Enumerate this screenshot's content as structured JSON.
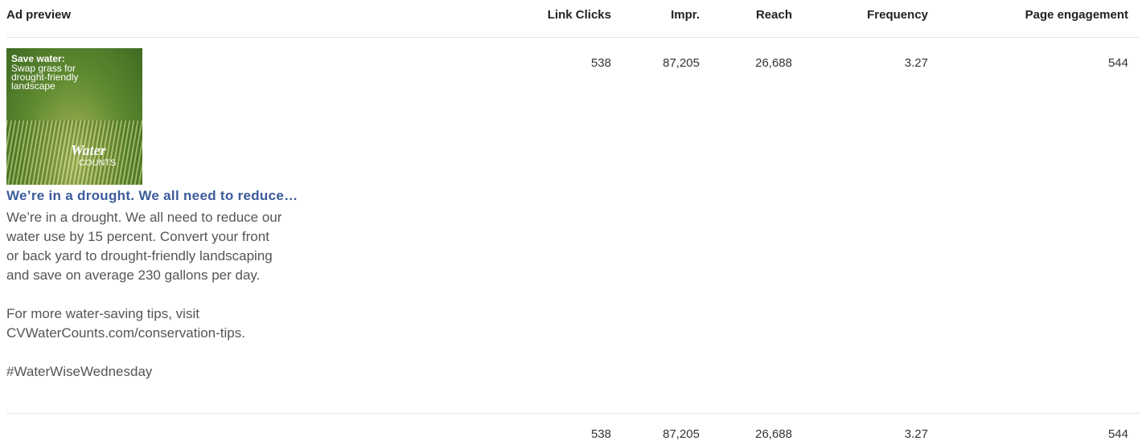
{
  "header": {
    "columns": [
      "Ad preview",
      "Link Clicks",
      "Impr.",
      "Reach",
      "Frequency",
      "Page engagement"
    ]
  },
  "rows": [
    {
      "ad": {
        "image": {
          "title": "Save water:",
          "subtitle_lines": [
            "Swap grass for",
            "drought-friendly",
            "landscape"
          ],
          "brand": "Water",
          "brand_sub": "COUNTS"
        },
        "headline": "We’re in a drought. We all need to reduce…",
        "body": [
          [
            "We’re in a drought. We all need to reduce our",
            "water use by 15 percent. Convert your front",
            "or back yard to drought-friendly landscaping",
            "and save on average 230 gallons per day."
          ],
          [
            "For more water-saving tips, visit",
            "CVWaterCounts.com/conservation-tips."
          ],
          [
            "#WaterWiseWednesday"
          ]
        ]
      },
      "cells": [
        "538",
        "87,205",
        "26,688",
        "3.27",
        "544"
      ]
    }
  ],
  "totals": [
    "538",
    "87,205",
    "26,688",
    "3.27",
    "544"
  ]
}
